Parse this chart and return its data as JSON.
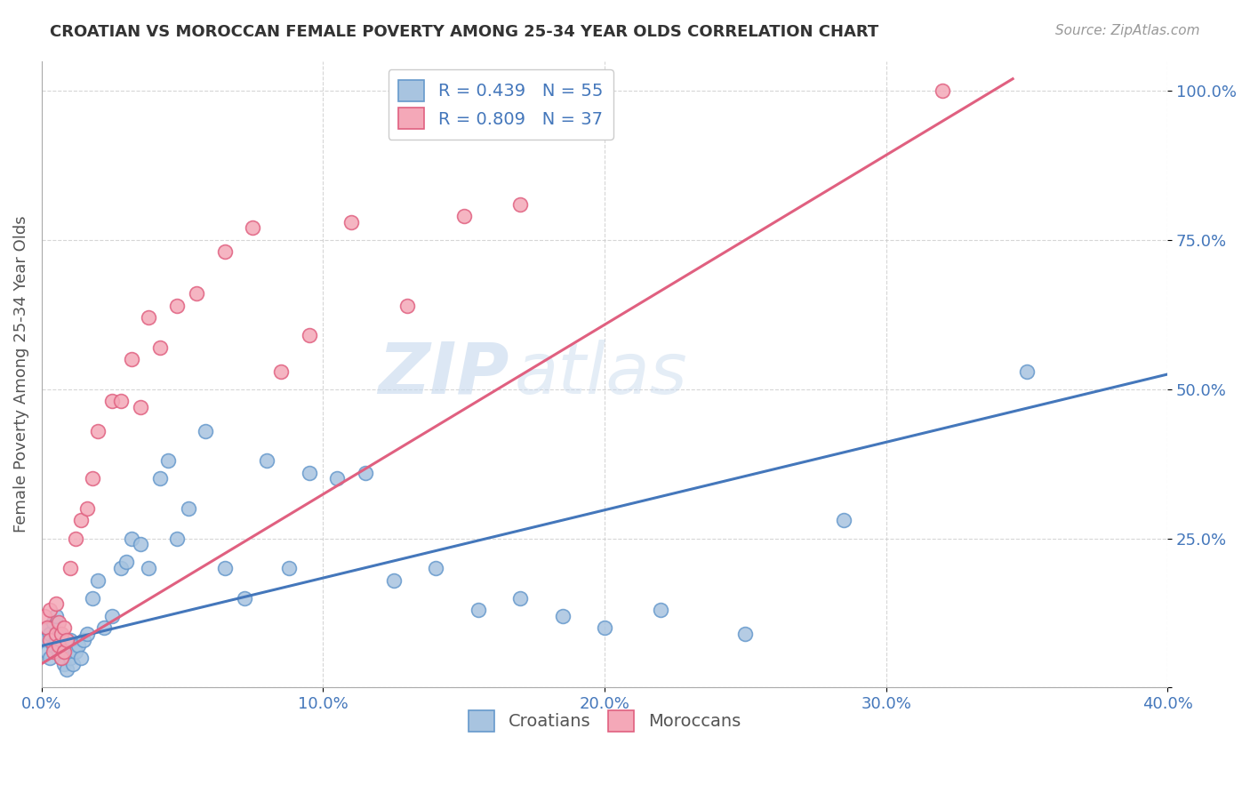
{
  "title": "CROATIAN VS MOROCCAN FEMALE POVERTY AMONG 25-34 YEAR OLDS CORRELATION CHART",
  "source": "Source: ZipAtlas.com",
  "ylabel": "Female Poverty Among 25-34 Year Olds",
  "xlim": [
    0.0,
    0.4
  ],
  "ylim": [
    0.0,
    1.05
  ],
  "croatian_color": "#a8c4e0",
  "moroccan_color": "#f4a8b8",
  "croatian_edge": "#6699cc",
  "moroccan_edge": "#e06080",
  "line_croatian": "#4477bb",
  "line_moroccan": "#e06080",
  "R_croatian": 0.439,
  "N_croatian": 55,
  "R_moroccan": 0.809,
  "N_moroccan": 37,
  "watermark_zip": "ZIP",
  "watermark_atlas": "atlas",
  "background_color": "#ffffff",
  "grid_color": "#cccccc",
  "axis_label_color": "#4477bb",
  "croatian_x": [
    0.001,
    0.002,
    0.002,
    0.003,
    0.003,
    0.004,
    0.004,
    0.005,
    0.005,
    0.006,
    0.006,
    0.007,
    0.007,
    0.008,
    0.008,
    0.009,
    0.01,
    0.01,
    0.011,
    0.012,
    0.013,
    0.014,
    0.015,
    0.016,
    0.018,
    0.02,
    0.022,
    0.025,
    0.028,
    0.03,
    0.032,
    0.035,
    0.038,
    0.042,
    0.045,
    0.048,
    0.052,
    0.058,
    0.065,
    0.072,
    0.08,
    0.088,
    0.095,
    0.105,
    0.115,
    0.125,
    0.14,
    0.155,
    0.17,
    0.185,
    0.2,
    0.22,
    0.25,
    0.285,
    0.35
  ],
  "croatian_y": [
    0.08,
    0.1,
    0.06,
    0.09,
    0.05,
    0.07,
    0.11,
    0.08,
    0.12,
    0.06,
    0.09,
    0.05,
    0.07,
    0.04,
    0.06,
    0.03,
    0.05,
    0.08,
    0.04,
    0.06,
    0.07,
    0.05,
    0.08,
    0.09,
    0.15,
    0.18,
    0.1,
    0.12,
    0.2,
    0.21,
    0.25,
    0.24,
    0.2,
    0.35,
    0.38,
    0.25,
    0.3,
    0.43,
    0.2,
    0.15,
    0.38,
    0.2,
    0.36,
    0.35,
    0.36,
    0.18,
    0.2,
    0.13,
    0.15,
    0.12,
    0.1,
    0.13,
    0.09,
    0.28,
    0.53
  ],
  "moroccan_x": [
    0.001,
    0.002,
    0.003,
    0.003,
    0.004,
    0.005,
    0.005,
    0.006,
    0.006,
    0.007,
    0.007,
    0.008,
    0.008,
    0.009,
    0.01,
    0.012,
    0.014,
    0.016,
    0.018,
    0.02,
    0.025,
    0.028,
    0.032,
    0.035,
    0.038,
    0.042,
    0.048,
    0.055,
    0.065,
    0.075,
    0.085,
    0.095,
    0.11,
    0.13,
    0.15,
    0.17,
    0.32
  ],
  "moroccan_y": [
    0.12,
    0.1,
    0.08,
    0.13,
    0.06,
    0.09,
    0.14,
    0.07,
    0.11,
    0.05,
    0.09,
    0.06,
    0.1,
    0.08,
    0.2,
    0.25,
    0.28,
    0.3,
    0.35,
    0.43,
    0.48,
    0.48,
    0.55,
    0.47,
    0.62,
    0.57,
    0.64,
    0.66,
    0.73,
    0.77,
    0.53,
    0.59,
    0.78,
    0.64,
    0.79,
    0.81,
    1.0
  ],
  "cro_line_x": [
    0.0,
    0.4
  ],
  "cro_line_y": [
    0.07,
    0.525
  ],
  "mor_line_x": [
    0.0,
    0.345
  ],
  "mor_line_y": [
    0.04,
    1.02
  ]
}
